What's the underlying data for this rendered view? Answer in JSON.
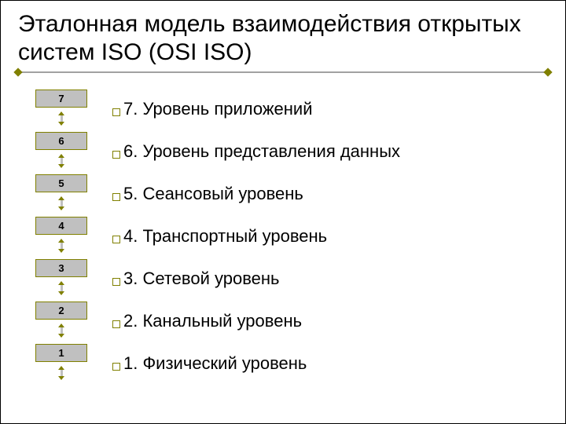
{
  "title": "Эталонная модель взаимодействия открытых систем ISO (OSI ISO)",
  "title_fontsize": 30,
  "rule_color": "#a1a1a1",
  "diamond_color": "#808000",
  "bullet_border": "#808000",
  "numbox": {
    "width": 66,
    "height": 23,
    "border_color": "#808000",
    "fill_color": "#c0c0c0",
    "text_color": "#000000",
    "fontsize": 13,
    "fontweight": "bold"
  },
  "arrow": {
    "shaft_color": "#c0c0c0",
    "head_color": "#808000"
  },
  "desc_fontsize": 22,
  "desc_color": "#000000",
  "layers": [
    {
      "num": "7",
      "desc": "7. Уровень приложений"
    },
    {
      "num": "6",
      "desc": "6. Уровень представления данных"
    },
    {
      "num": "5",
      "desc": "5. Сеансовый уровень"
    },
    {
      "num": "4",
      "desc": "4. Транспортный уровень"
    },
    {
      "num": "3",
      "desc": "3. Сетевой уровень"
    },
    {
      "num": "2",
      "desc": "2. Канальный уровень"
    },
    {
      "num": "1",
      "desc": "1. Физический уровень"
    }
  ],
  "background_color": "#ffffff",
  "slide_width": 720,
  "slide_height": 540
}
